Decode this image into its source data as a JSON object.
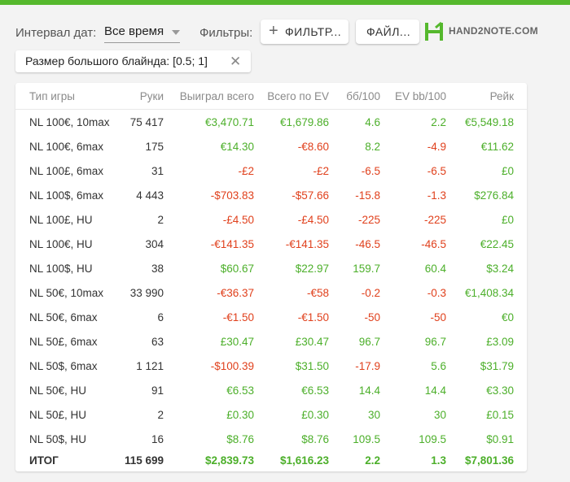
{
  "colors": {
    "accent": "#55b82d",
    "positive": "#4caf2a",
    "negative": "#e0401c"
  },
  "filters": {
    "interval_label": "Интервал дат:",
    "interval_value": "Все время",
    "filters_label": "Фильтры:",
    "filter_button": "ФИЛЬТР...",
    "file_button": "ФАЙЛ...",
    "logo_text": "HAND2NOTE.COM"
  },
  "chip": {
    "text": "Размер большого блайнда: [0.5; 1]",
    "close": "✕"
  },
  "table": {
    "headers": [
      "Тип игры",
      "Руки",
      "Выиграл всего",
      "Всего по EV",
      "бб/100",
      "EV bb/100",
      "Рейк"
    ],
    "rows": [
      [
        "NL 100€, 10max",
        "75 417",
        "€3,470.71",
        "€1,679.86",
        "4.6",
        "2.2",
        "€5,549.18"
      ],
      [
        "NL 100€, 6max",
        "175",
        "€14.30",
        "-€8.60",
        "8.2",
        "-4.9",
        "€11.62"
      ],
      [
        "NL 100£, 6max",
        "31",
        "-£2",
        "-£2",
        "-6.5",
        "-6.5",
        "£0"
      ],
      [
        "NL 100$, 6max",
        "4 443",
        "-$703.83",
        "-$57.66",
        "-15.8",
        "-1.3",
        "$276.84"
      ],
      [
        "NL 100£, HU",
        "2",
        "-£4.50",
        "-£4.50",
        "-225",
        "-225",
        "£0"
      ],
      [
        "NL 100€, HU",
        "304",
        "-€141.35",
        "-€141.35",
        "-46.5",
        "-46.5",
        "€22.45"
      ],
      [
        "NL 100$, HU",
        "38",
        "$60.67",
        "$22.97",
        "159.7",
        "60.4",
        "$3.24"
      ],
      [
        "NL 50€, 10max",
        "33 990",
        "-€36.37",
        "-€58",
        "-0.2",
        "-0.3",
        "€1,408.34"
      ],
      [
        "NL 50€, 6max",
        "6",
        "-€1.50",
        "-€1.50",
        "-50",
        "-50",
        "€0"
      ],
      [
        "NL 50£, 6max",
        "63",
        "£30.47",
        "£30.47",
        "96.7",
        "96.7",
        "£3.09"
      ],
      [
        "NL 50$, 6max",
        "1 121",
        "-$100.39",
        "$31.50",
        "-17.9",
        "5.6",
        "$31.79"
      ],
      [
        "NL 50€, HU",
        "91",
        "€6.53",
        "€6.53",
        "14.4",
        "14.4",
        "€3.30"
      ],
      [
        "NL 50£, HU",
        "2",
        "£0.30",
        "£0.30",
        "30",
        "30",
        "£0.15"
      ],
      [
        "NL 50$, HU",
        "16",
        "$8.76",
        "$8.76",
        "109.5",
        "109.5",
        "$0.91"
      ]
    ],
    "total": [
      "ИТОГ",
      "115 699",
      "$2,839.73",
      "$1,616.23",
      "2.2",
      "1.3",
      "$7,801.36"
    ]
  }
}
